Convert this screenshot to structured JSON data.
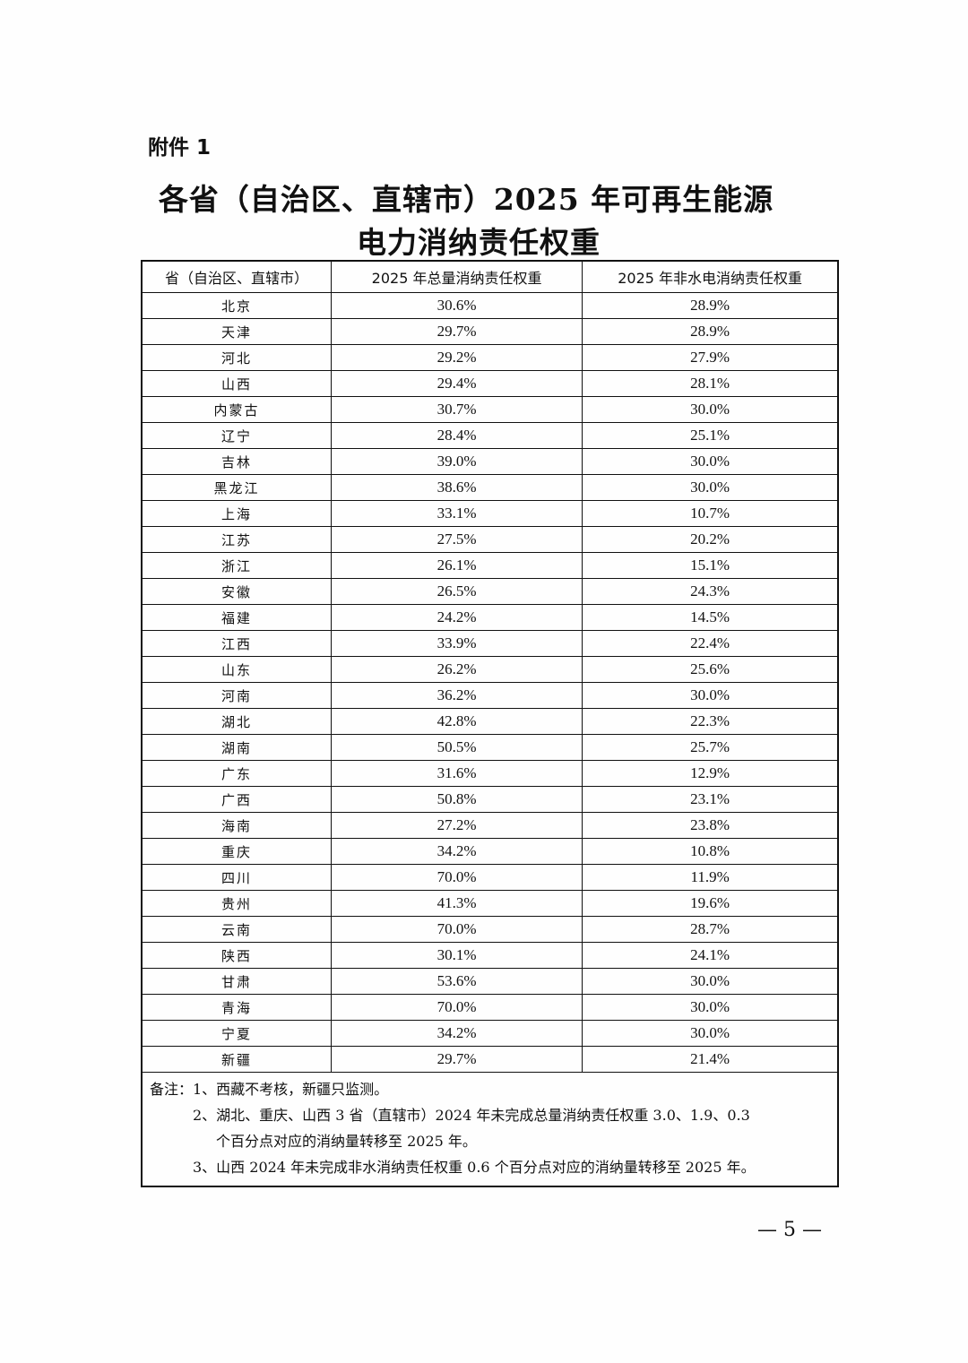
{
  "attachment_label": "附件 1",
  "title_line1": "各省（自治区、直辖市）2025 年可再生能源",
  "title_line2": "电力消纳责任权重",
  "table": {
    "headers": [
      "省（自治区、直辖市）",
      "2025 年总量消纳责任权重",
      "2025 年非水电消纳责任权重"
    ],
    "rows": [
      [
        "北京",
        "30.6%",
        "28.9%"
      ],
      [
        "天津",
        "29.7%",
        "28.9%"
      ],
      [
        "河北",
        "29.2%",
        "27.9%"
      ],
      [
        "山西",
        "29.4%",
        "28.1%"
      ],
      [
        "内蒙古",
        "30.7%",
        "30.0%"
      ],
      [
        "辽宁",
        "28.4%",
        "25.1%"
      ],
      [
        "吉林",
        "39.0%",
        "30.0%"
      ],
      [
        "黑龙江",
        "38.6%",
        "30.0%"
      ],
      [
        "上海",
        "33.1%",
        "10.7%"
      ],
      [
        "江苏",
        "27.5%",
        "20.2%"
      ],
      [
        "浙江",
        "26.1%",
        "15.1%"
      ],
      [
        "安徽",
        "26.5%",
        "24.3%"
      ],
      [
        "福建",
        "24.2%",
        "14.5%"
      ],
      [
        "江西",
        "33.9%",
        "22.4%"
      ],
      [
        "山东",
        "26.2%",
        "25.6%"
      ],
      [
        "河南",
        "36.2%",
        "30.0%"
      ],
      [
        "湖北",
        "42.8%",
        "22.3%"
      ],
      [
        "湖南",
        "50.5%",
        "25.7%"
      ],
      [
        "广东",
        "31.6%",
        "12.9%"
      ],
      [
        "广西",
        "50.8%",
        "23.1%"
      ],
      [
        "海南",
        "27.2%",
        "23.8%"
      ],
      [
        "重庆",
        "34.2%",
        "10.8%"
      ],
      [
        "四川",
        "70.0%",
        "11.9%"
      ],
      [
        "贵州",
        "41.3%",
        "19.6%"
      ],
      [
        "云南",
        "70.0%",
        "28.7%"
      ],
      [
        "陕西",
        "30.1%",
        "24.1%"
      ],
      [
        "甘肃",
        "53.6%",
        "30.0%"
      ],
      [
        "青海",
        "70.0%",
        "30.0%"
      ],
      [
        "宁夏",
        "34.2%",
        "30.0%"
      ],
      [
        "新疆",
        "29.7%",
        "21.4%"
      ]
    ]
  },
  "notes": {
    "line1": "备注：1、西藏不考核，新疆只监测。",
    "line2": "2、湖北、重庆、山西 3 省（直辖市）2024 年未完成总量消纳责任权重 3.0、1.9、0.3",
    "line2b": "个百分点对应的消纳量转移至 2025 年。",
    "line3": "3、山西 2024 年未完成非水消纳责任权重 0.6 个百分点对应的消纳量转移至 2025 年。"
  },
  "page_number": "— 5 —"
}
